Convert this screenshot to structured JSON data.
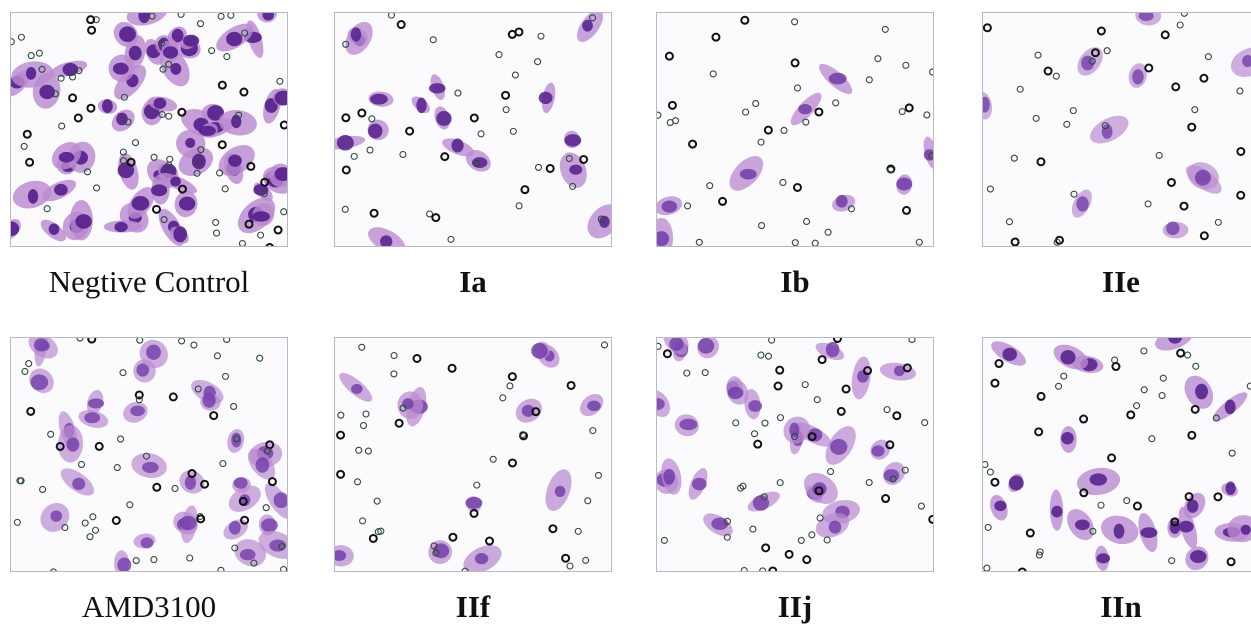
{
  "panels": [
    {
      "label": "Negtive Control"
    },
    {
      "label": "Ia"
    },
    {
      "label": "Ib"
    },
    {
      "label": "IIe"
    },
    {
      "label": "AMD3100"
    },
    {
      "label": "IIf"
    },
    {
      "label": "IIj"
    },
    {
      "label": "IIn"
    }
  ]
}
